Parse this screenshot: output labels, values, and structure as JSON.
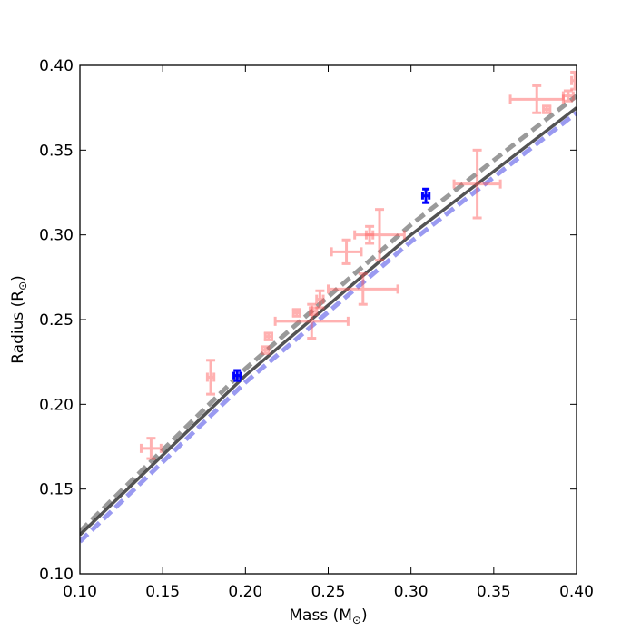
{
  "chart_data": {
    "type": "scatter",
    "title": "",
    "xlabel": "Mass (M",
    "xlabel_sub": "⊙",
    "xlabel_close": ")",
    "ylabel": "Radius (R",
    "ylabel_sub": "⊙",
    "ylabel_close": ")",
    "xlim": [
      0.1,
      0.4
    ],
    "ylim": [
      0.1,
      0.4
    ],
    "x_ticks": [
      "0.10",
      "0.15",
      "0.20",
      "0.25",
      "0.30",
      "0.35",
      "0.40"
    ],
    "y_ticks": [
      "0.10",
      "0.15",
      "0.20",
      "0.25",
      "0.30",
      "0.35",
      "0.40"
    ],
    "grid": false,
    "colors": {
      "literature": "#ff5555",
      "new": "#0000ff",
      "model_solid": "#404040",
      "model_dashed_gray": "#888888",
      "model_dashed_blue": "#8888ee"
    },
    "series": [
      {
        "style": "literature-points",
        "points": [
          {
            "x": 0.143,
            "y": 0.174,
            "xerr": 0.006,
            "yerr": 0.006
          },
          {
            "x": 0.179,
            "y": 0.216,
            "xerr": 0.002,
            "yerr": 0.01
          },
          {
            "x": 0.214,
            "y": 0.24,
            "xerr": 0.002,
            "yerr": 0.002
          },
          {
            "x": 0.212,
            "y": 0.232,
            "xerr": 0.002,
            "yerr": 0.002
          },
          {
            "x": 0.231,
            "y": 0.254,
            "xerr": 0.002,
            "yerr": 0.002
          },
          {
            "x": 0.24,
            "y": 0.249,
            "xerr": 0.022,
            "yerr": 0.01
          },
          {
            "x": 0.241,
            "y": 0.255,
            "xerr": 0.002,
            "yerr": 0.002
          },
          {
            "x": 0.245,
            "y": 0.262,
            "xerr": 0.002,
            "yerr": 0.005
          },
          {
            "x": 0.261,
            "y": 0.29,
            "xerr": 0.009,
            "yerr": 0.007
          },
          {
            "x": 0.271,
            "y": 0.268,
            "xerr": 0.021,
            "yerr": 0.009
          },
          {
            "x": 0.275,
            "y": 0.3,
            "xerr": 0.002,
            "yerr": 0.005
          },
          {
            "x": 0.281,
            "y": 0.3,
            "xerr": 0.015,
            "yerr": 0.015
          },
          {
            "x": 0.34,
            "y": 0.33,
            "xerr": 0.014,
            "yerr": 0.02
          },
          {
            "x": 0.376,
            "y": 0.38,
            "xerr": 0.016,
            "yerr": 0.008
          },
          {
            "x": 0.382,
            "y": 0.374,
            "xerr": 0.002,
            "yerr": 0.002
          },
          {
            "x": 0.395,
            "y": 0.382,
            "xerr": 0.003,
            "yerr": 0.003
          },
          {
            "x": 0.399,
            "y": 0.391,
            "xerr": 0.002,
            "yerr": 0.005
          }
        ]
      },
      {
        "style": "new-points",
        "points": [
          {
            "x": 0.195,
            "y": 0.217,
            "xerr": 0.002,
            "yerr": 0.003
          },
          {
            "x": 0.309,
            "y": 0.323,
            "xerr": 0.002,
            "yerr": 0.004
          }
        ]
      },
      {
        "style": "model-dashed-gray",
        "x": [
          0.1,
          0.2,
          0.3,
          0.4
        ],
        "y": [
          0.125,
          0.221,
          0.306,
          0.382
        ]
      },
      {
        "style": "model-dashed-blue",
        "x": [
          0.1,
          0.2,
          0.3,
          0.4
        ],
        "y": [
          0.119,
          0.213,
          0.296,
          0.372
        ]
      },
      {
        "style": "model-solid",
        "x": [
          0.1,
          0.2,
          0.3,
          0.4
        ],
        "y": [
          0.123,
          0.217,
          0.3,
          0.375
        ]
      }
    ]
  }
}
